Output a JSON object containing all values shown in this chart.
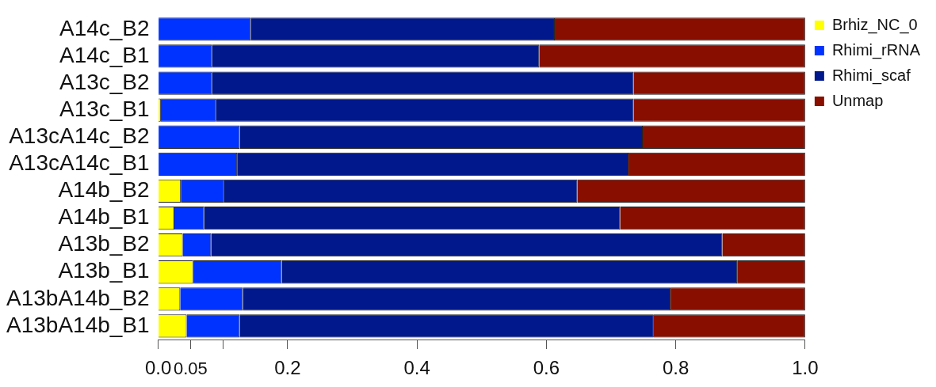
{
  "chart_data": {
    "type": "bar",
    "orientation": "horizontal",
    "stacked": true,
    "categories": [
      "A14c_B2",
      "A14c_B1",
      "A13c_B2",
      "A13c_B1",
      "A13cA14c_B2",
      "A13cA14c_B1",
      "A14b_B2",
      "A14b_B1",
      "A13b_B2",
      "A13b_B1",
      "A13bA14b_B2",
      "A13bA14b_B1"
    ],
    "series": [
      {
        "name": "Brhiz_NC_0",
        "color": "#ffff00",
        "values": [
          0,
          0,
          0,
          0.004,
          0,
          0,
          0.035,
          0.025,
          0.038,
          0.054,
          0.034,
          0.044
        ]
      },
      {
        "name": "Rhimi_rRNA",
        "color": "#0033ff",
        "values": [
          0.143,
          0.083,
          0.083,
          0.085,
          0.126,
          0.122,
          0.067,
          0.046,
          0.044,
          0.137,
          0.097,
          0.082
        ]
      },
      {
        "name": "Rhimi_scaf",
        "color": "#00188c",
        "values": [
          0.47,
          0.506,
          0.652,
          0.646,
          0.623,
          0.605,
          0.546,
          0.643,
          0.79,
          0.704,
          0.661,
          0.64
        ]
      },
      {
        "name": "Unmap",
        "color": "#880e00",
        "values": [
          0.387,
          0.411,
          0.265,
          0.265,
          0.251,
          0.273,
          0.352,
          0.286,
          0.128,
          0.105,
          0.208,
          0.234
        ]
      }
    ],
    "xlim": [
      0,
      1
    ],
    "xticks": [
      {
        "value": 0,
        "label": "0.0"
      },
      0.05,
      {
        "value": 0.1,
        "label": null
      },
      0.2,
      0.4,
      0.6,
      0.8,
      {
        "value": 1,
        "label": "1.0"
      }
    ],
    "grid": false,
    "legend": "top right"
  }
}
